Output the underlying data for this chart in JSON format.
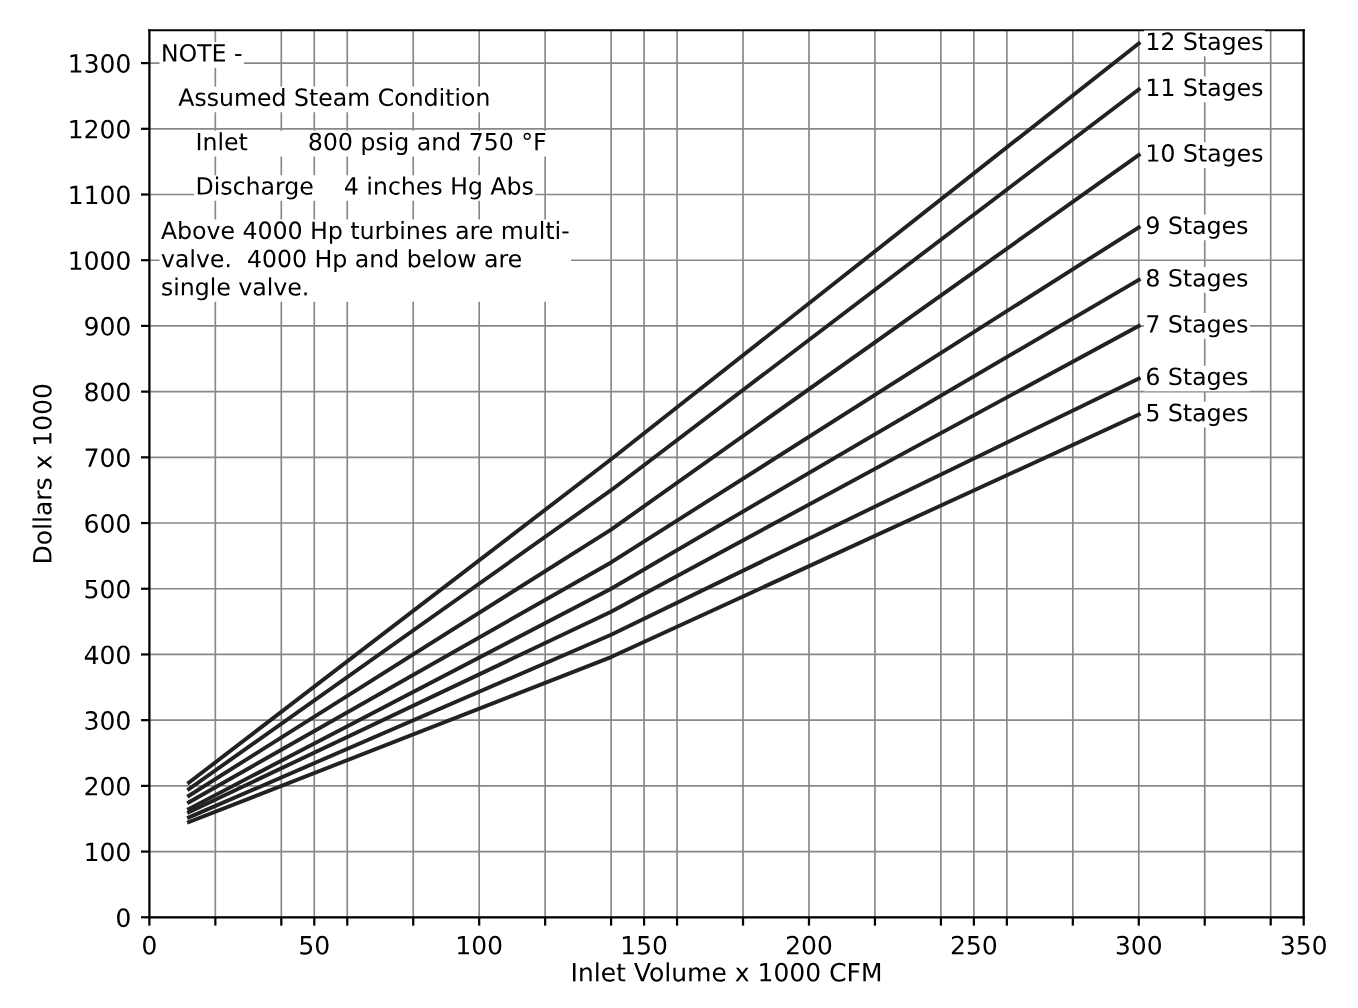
{
  "chart_data": {
    "type": "line",
    "xlabel": "Inlet Volume x 1000 CFM",
    "ylabel": "Dollars x 1000",
    "x": [
      12,
      140,
      300
    ],
    "series": [
      {
        "name": "12 Stages",
        "color": "#222222",
        "values": [
          205,
          697,
          1330
        ]
      },
      {
        "name": "11 Stages",
        "color": "#222222",
        "values": [
          195,
          650,
          1260
        ]
      },
      {
        "name": "10 Stages",
        "color": "#222222",
        "values": [
          185,
          590,
          1160
        ]
      },
      {
        "name": "9 Stages",
        "color": "#222222",
        "values": [
          175,
          540,
          1050
        ]
      },
      {
        "name": "8 Stages",
        "color": "#222222",
        "values": [
          165,
          500,
          970
        ]
      },
      {
        "name": "7 Stages",
        "color": "#222222",
        "values": [
          160,
          465,
          900
        ]
      },
      {
        "name": "6 Stages",
        "color": "#222222",
        "values": [
          152,
          430,
          820
        ]
      },
      {
        "name": "5 Stages",
        "color": "#222222",
        "values": [
          145,
          396,
          765
        ]
      }
    ],
    "xlim": [
      0,
      350
    ],
    "ylim": [
      0,
      1350
    ],
    "xticks": [
      0,
      {
        "value": 20,
        "label": null
      },
      {
        "value": 40,
        "label": null
      },
      50,
      {
        "value": 60,
        "label": null
      },
      {
        "value": 80,
        "label": null
      },
      100,
      {
        "value": 120,
        "label": null
      },
      {
        "value": 140,
        "label": null
      },
      150,
      {
        "value": 160,
        "label": null
      },
      {
        "value": 180,
        "label": null
      },
      200,
      {
        "value": 220,
        "label": null
      },
      {
        "value": 240,
        "label": null
      },
      250,
      {
        "value": 260,
        "label": null
      },
      {
        "value": 280,
        "label": null
      },
      300,
      {
        "value": 320,
        "label": null
      },
      {
        "value": 340,
        "label": null
      },
      350
    ],
    "yticks": [
      0,
      100,
      200,
      300,
      400,
      500,
      600,
      700,
      800,
      900,
      1000,
      1100,
      1200,
      1300
    ],
    "grid": true,
    "legend": false,
    "marker": "none",
    "line_style": "solid",
    "annotations": [
      "NOTE -",
      "Assumed Steam Condition",
      "Inlet        800 psig and 750 °F",
      "Discharge    4 inches Hg Abs",
      "Above 4000 Hp turbines are multi-\nvalve.  4000 Hp and below are\nsingle valve."
    ]
  }
}
